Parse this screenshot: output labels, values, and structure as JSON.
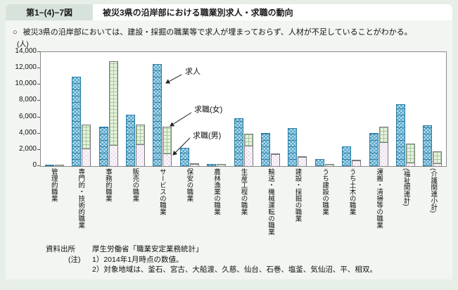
{
  "header": {
    "fig_no": "第1−(4)−7図",
    "title": "被災3県の沿岸部における職業別求人・求職の動向"
  },
  "lead": {
    "bullet": "○",
    "text": "被災3県の沿岸部においては、建設・採掘の職業等で求人が埋まっておらず、人材が不足していることがわかる。"
  },
  "chart_data": {
    "type": "bar",
    "unit_label": "(人)",
    "ylim": [
      0,
      14000
    ],
    "ytick_step": 2000,
    "yticks": [
      "14,000",
      "12,000",
      "10,000",
      "8,000",
      "6,000",
      "4,000",
      "2,000",
      "0"
    ],
    "grid": false,
    "legend_position": "annotations-inside-plot",
    "annotations": [
      {
        "label": "求人",
        "points_to": "blue-kyujin-bar"
      },
      {
        "label": "求職(女)",
        "points_to": "green-female-segment"
      },
      {
        "label": "求職(男)",
        "points_to": "pink-male-segment"
      }
    ],
    "categories": [
      "管理的職業",
      "専門的・技術的職業",
      "事務的職業",
      "販売の職業",
      "サービスの職業",
      "保安の職業",
      "農林漁業の職業",
      "生産工程の職業",
      "輸送・機械運転の職業",
      "建設・採掘の職業",
      "うち建設の職業",
      "うち土木の職業",
      "運搬・清掃等の職業",
      "(福祉関連計)",
      "(介護関連小計)"
    ],
    "series": [
      {
        "name": "求人",
        "role": "single-bar",
        "color_key": "kyujin_blue",
        "values": [
          100,
          10950,
          4800,
          6350,
          12500,
          2250,
          250,
          5900,
          4100,
          4700,
          900,
          2400,
          4100,
          7600,
          5050
        ]
      },
      {
        "name": "求職(男)",
        "role": "stack-bottom",
        "color_key": "kyushoku_male_pink",
        "values": [
          100,
          2200,
          2600,
          2700,
          1550,
          250,
          150,
          2500,
          1450,
          1100,
          150,
          700,
          2900,
          450,
          350
        ]
      },
      {
        "name": "求職(女)",
        "role": "stack-top",
        "color_key": "kyushoku_female_green",
        "values": [
          50,
          2900,
          10300,
          2450,
          3300,
          50,
          100,
          1450,
          100,
          100,
          50,
          50,
          1900,
          2350,
          1450
        ]
      }
    ],
    "colors": {
      "kyujin_blue_light": "#b9dcec",
      "kyujin_blue_dark": "#4da2c6",
      "kyushoku_male_pink": "#ecdcec",
      "kyushoku_female_green": "#e9f1df",
      "plot_bg": "#ffffff",
      "card_bg": "#f2f5f1",
      "page_bg": "#e7eee8",
      "header_num_bg": "#d7e3da"
    }
  },
  "notes": {
    "source_label": "資料出所",
    "source_text": "厚生労働省「職業安定業務統計」",
    "note_label": "(注)",
    "note1": "1）2014年1月時点の数値。",
    "note2": "2）対象地域は、釜石、宮古、大船渡、久慈、仙台、石巻、塩釜、気仙沼、平、相双。"
  }
}
